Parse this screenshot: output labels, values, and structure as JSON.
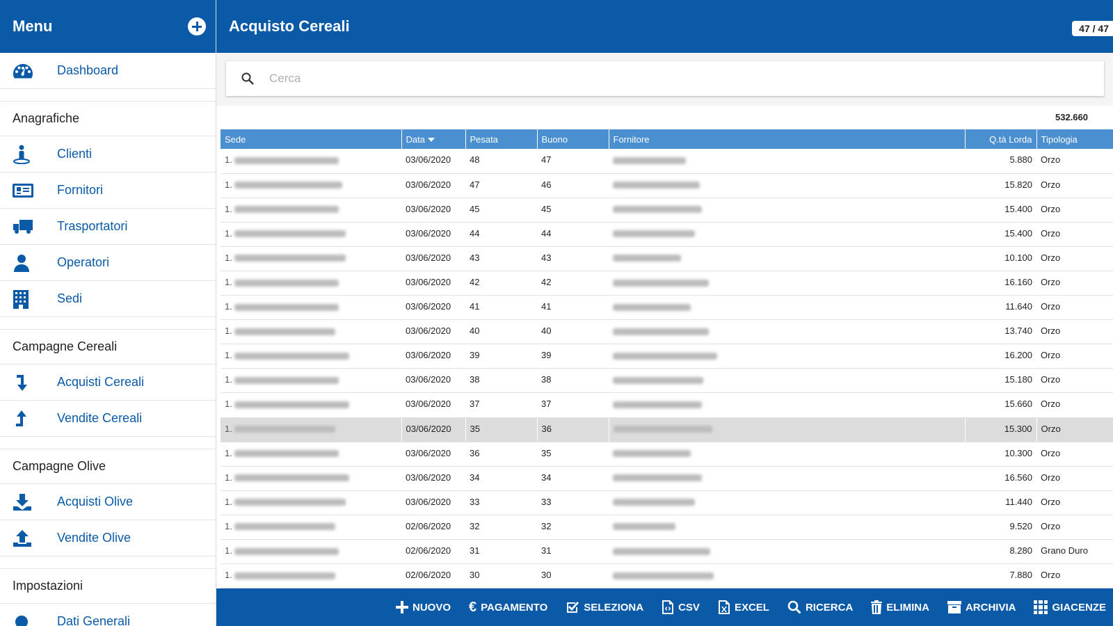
{
  "sidebar": {
    "title": "Menu",
    "dashboard": "Dashboard",
    "sections": {
      "anagrafiche": {
        "title": "Anagrafiche",
        "items": [
          "Clienti",
          "Fornitori",
          "Trasportatori",
          "Operatori",
          "Sedi"
        ]
      },
      "cereali": {
        "title": "Campagne Cereali",
        "items": [
          "Acquisti Cereali",
          "Vendite Cereali"
        ]
      },
      "olive": {
        "title": "Campagne Olive",
        "items": [
          "Acquisti Olive",
          "Vendite Olive"
        ]
      },
      "impostazioni": {
        "title": "Impostazioni",
        "items": [
          "Dati Generali"
        ]
      }
    }
  },
  "header": {
    "title": "Acquisto Cereali",
    "counter": "47 / 47"
  },
  "search": {
    "placeholder": "Cerca",
    "value": ""
  },
  "table": {
    "total": "532.660",
    "columns": [
      "Sede",
      "Data",
      "Pesata",
      "Buono",
      "Fornitore",
      "Q.tà Lorda",
      "Tipologia"
    ],
    "rows": [
      {
        "prefix": "1.",
        "data": "03/06/2020",
        "pesata": "48",
        "buono": "47",
        "qta": "5.880",
        "tipologia": "Orzo"
      },
      {
        "prefix": "1.",
        "data": "03/06/2020",
        "pesata": "47",
        "buono": "46",
        "qta": "15.820",
        "tipologia": "Orzo"
      },
      {
        "prefix": "1.",
        "data": "03/06/2020",
        "pesata": "45",
        "buono": "45",
        "qta": "15.400",
        "tipologia": "Orzo"
      },
      {
        "prefix": "1.",
        "data": "03/06/2020",
        "pesata": "44",
        "buono": "44",
        "qta": "15.400",
        "tipologia": "Orzo"
      },
      {
        "prefix": "1.",
        "data": "03/06/2020",
        "pesata": "43",
        "buono": "43",
        "qta": "10.100",
        "tipologia": "Orzo"
      },
      {
        "prefix": "1.",
        "data": "03/06/2020",
        "pesata": "42",
        "buono": "42",
        "qta": "16.160",
        "tipologia": "Orzo"
      },
      {
        "prefix": "1.",
        "data": "03/06/2020",
        "pesata": "41",
        "buono": "41",
        "qta": "11.640",
        "tipologia": "Orzo"
      },
      {
        "prefix": "1.",
        "data": "03/06/2020",
        "pesata": "40",
        "buono": "40",
        "qta": "13.740",
        "tipologia": "Orzo"
      },
      {
        "prefix": "1.",
        "data": "03/06/2020",
        "pesata": "39",
        "buono": "39",
        "qta": "16.200",
        "tipologia": "Orzo"
      },
      {
        "prefix": "1.",
        "data": "03/06/2020",
        "pesata": "38",
        "buono": "38",
        "qta": "15.180",
        "tipologia": "Orzo"
      },
      {
        "prefix": "1.",
        "data": "03/06/2020",
        "pesata": "37",
        "buono": "37",
        "qta": "15.660",
        "tipologia": "Orzo"
      },
      {
        "prefix": "1.",
        "data": "03/06/2020",
        "pesata": "35",
        "buono": "36",
        "qta": "15.300",
        "tipologia": "Orzo"
      },
      {
        "prefix": "1.",
        "data": "03/06/2020",
        "pesata": "36",
        "buono": "35",
        "qta": "10.300",
        "tipologia": "Orzo"
      },
      {
        "prefix": "1.",
        "data": "03/06/2020",
        "pesata": "34",
        "buono": "34",
        "qta": "16.560",
        "tipologia": "Orzo"
      },
      {
        "prefix": "1.",
        "data": "03/06/2020",
        "pesata": "33",
        "buono": "33",
        "qta": "11.440",
        "tipologia": "Orzo"
      },
      {
        "prefix": "1.",
        "data": "02/06/2020",
        "pesata": "32",
        "buono": "32",
        "qta": "9.520",
        "tipologia": "Orzo"
      },
      {
        "prefix": "1.",
        "data": "02/06/2020",
        "pesata": "31",
        "buono": "31",
        "qta": "8.280",
        "tipologia": "Grano Duro"
      },
      {
        "prefix": "1.",
        "data": "02/06/2020",
        "pesata": "30",
        "buono": "30",
        "qta": "7.880",
        "tipologia": "Orzo"
      }
    ]
  },
  "toolbar": {
    "nuovo": "NUOVO",
    "pagamento": "PAGAMENTO",
    "seleziona": "SELEZIONA",
    "csv": "CSV",
    "excel": "EXCEL",
    "ricerca": "RICERCA",
    "elimina": "ELIMINA",
    "archivia": "ARCHIVIA",
    "giacenze": "GIACENZE"
  },
  "colors": {
    "primary": "#0a5aa8",
    "table_header": "#4a8fd0",
    "selected_row": "#dcdcdc"
  },
  "icons": {
    "dashboard": "speedometer-icon",
    "clienti": "person-pin-icon",
    "fornitori": "id-card-icon",
    "trasportatori": "truck-icon",
    "operatori": "user-icon",
    "sedi": "building-icon",
    "acquisti_cereali": "arrow-down-icon",
    "vendite_cereali": "arrow-up-icon",
    "acquisti_olive": "download-icon",
    "vendite_olive": "upload-icon"
  }
}
